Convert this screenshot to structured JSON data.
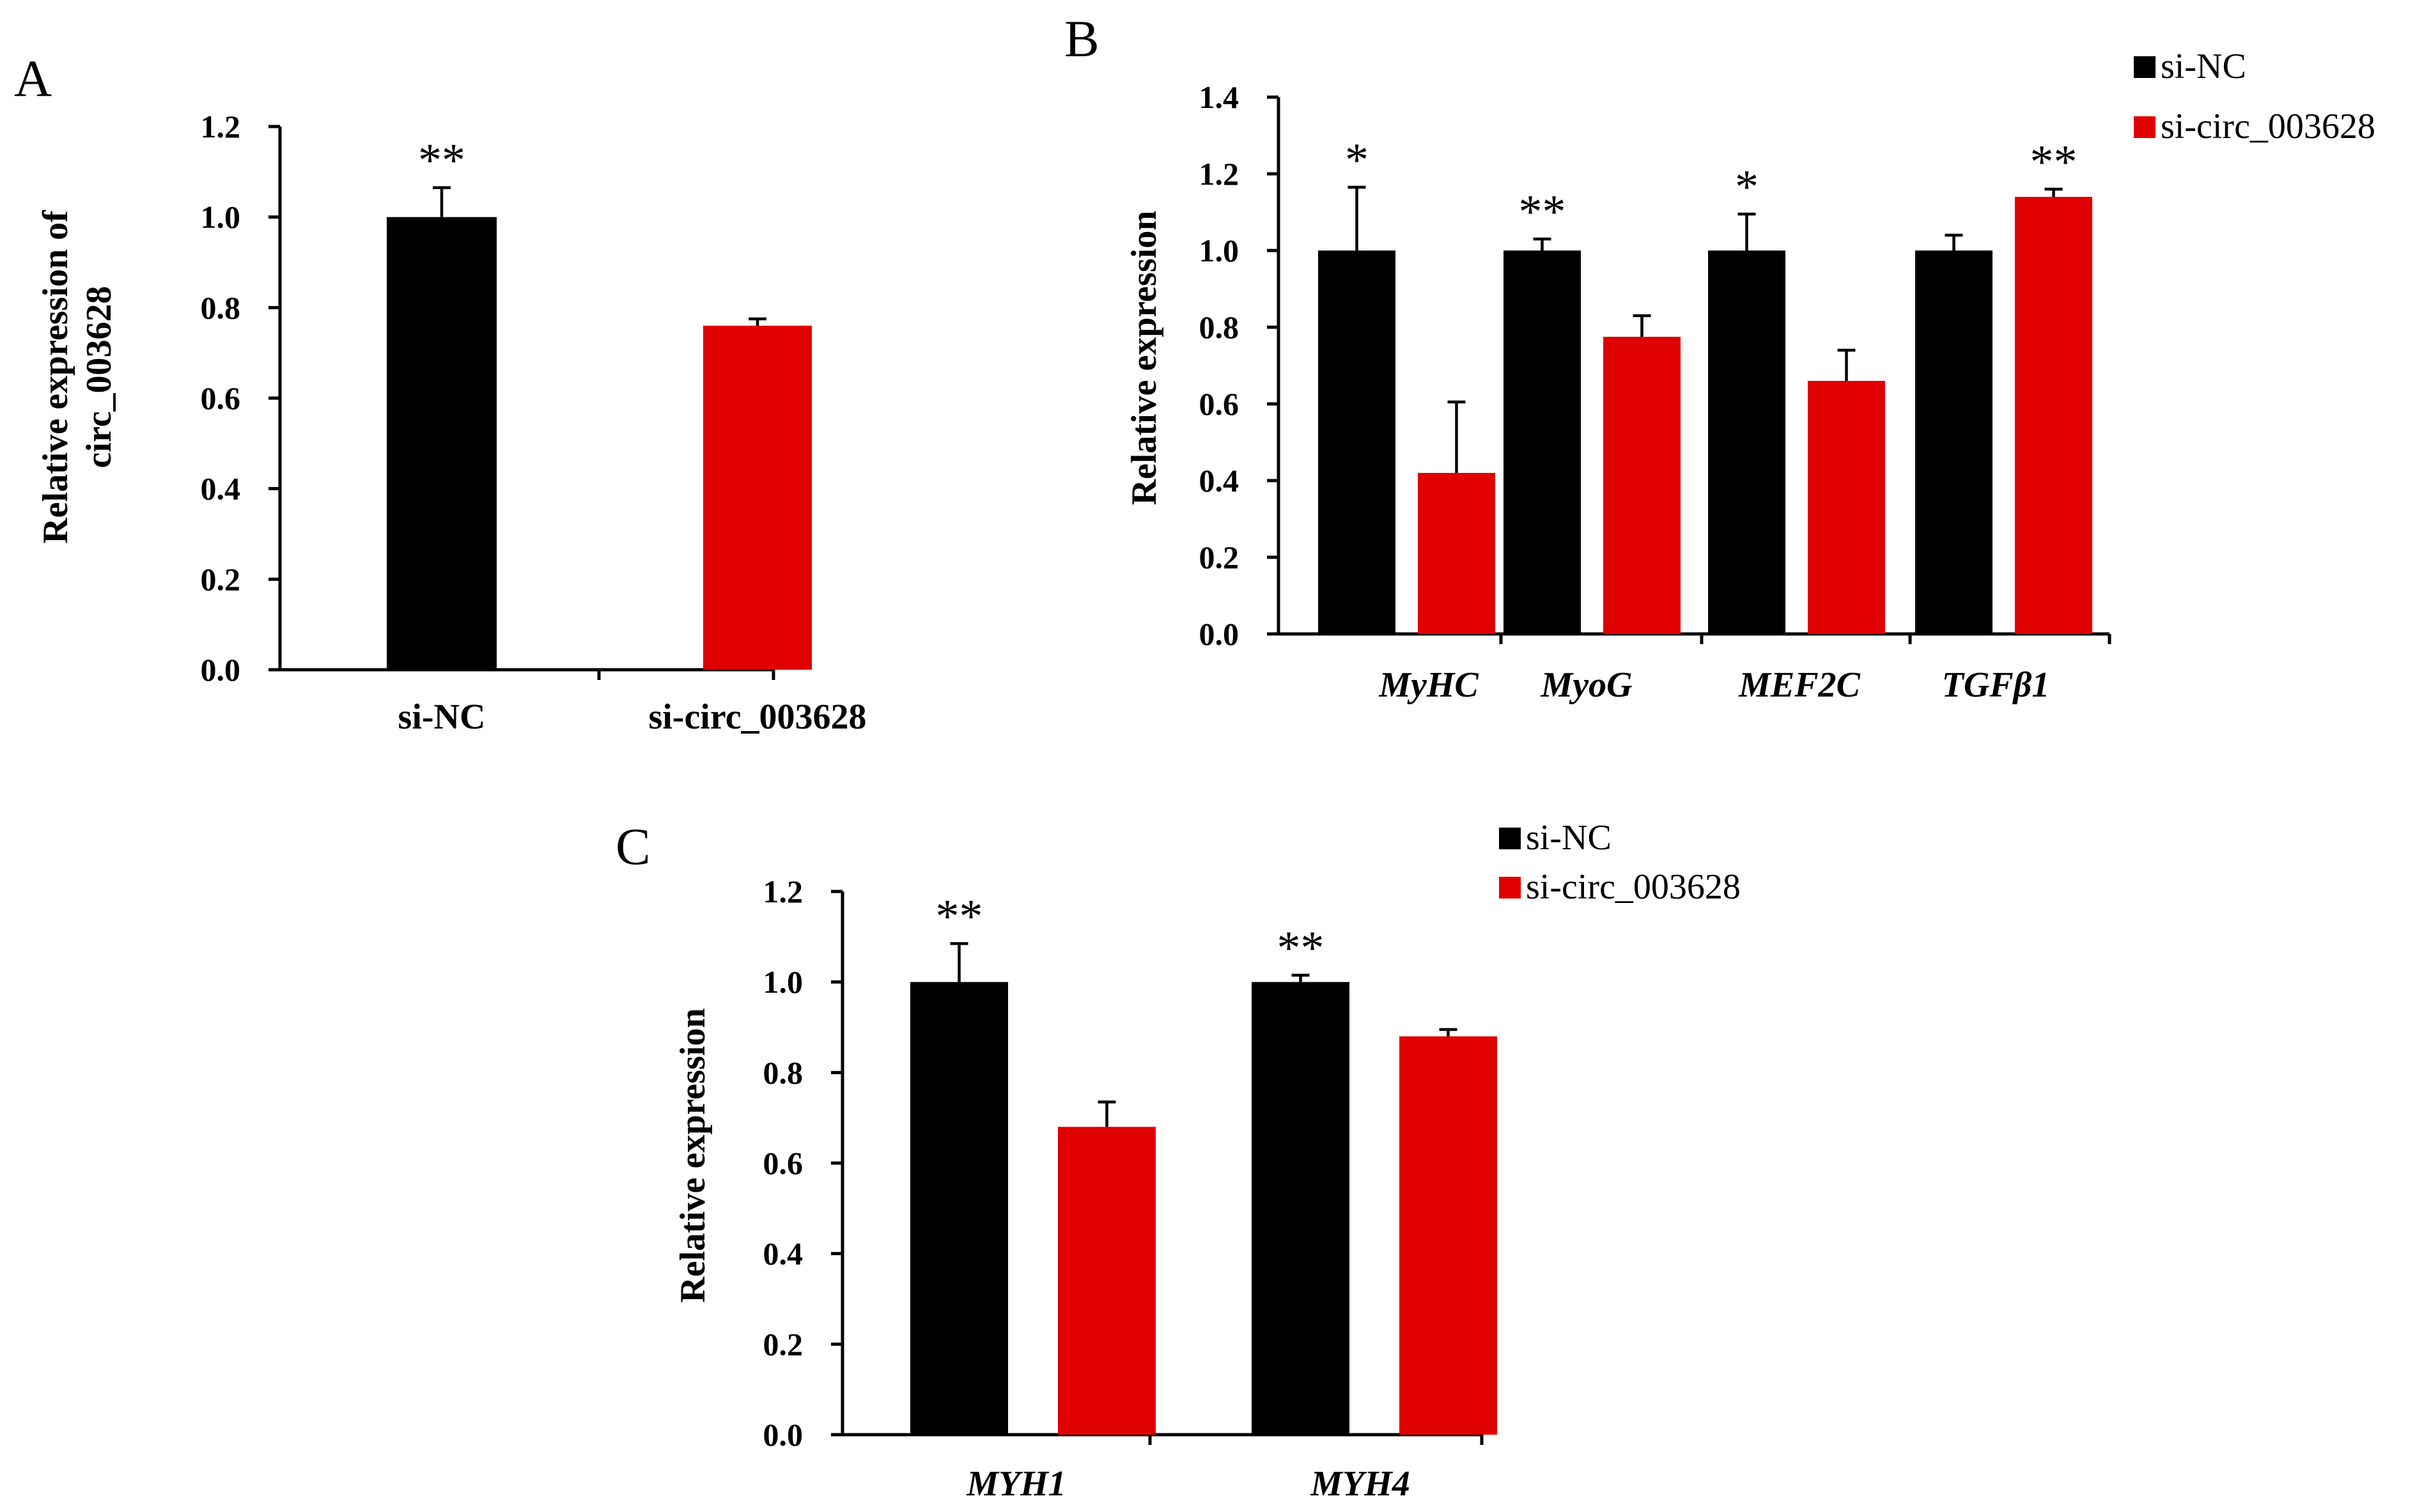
{
  "colors": {
    "si_nc": "#000000",
    "si_circ": "#e00000"
  },
  "chart_data": [
    {
      "panel": "A",
      "type": "bar",
      "title": "",
      "xlabel": "",
      "ylabel": "Relative expression of circ_003628",
      "ylabel_lines": [
        "Relative expression of",
        "circ_003628"
      ],
      "ylim": [
        0,
        1.2
      ],
      "yticks": [
        "0.0",
        "0.2",
        "0.4",
        "0.6",
        "0.8",
        "1.0",
        "1.2"
      ],
      "categories": [
        "si-NC",
        "si-circ_003628"
      ],
      "values": [
        1.0,
        0.76
      ],
      "errors": [
        0.065,
        0.015
      ],
      "colors": [
        "#000000",
        "#e00000"
      ],
      "significance": [
        "**",
        ""
      ],
      "italic_categories": false,
      "legend": false
    },
    {
      "panel": "B",
      "type": "bar",
      "title": "",
      "xlabel": "",
      "ylabel": "Relative expression",
      "ylim": [
        0,
        1.4
      ],
      "yticks": [
        "0.0",
        "0.2",
        "0.4",
        "0.6",
        "0.8",
        "1.0",
        "1.2",
        "1.4"
      ],
      "categories": [
        "MyHC",
        "MyoG",
        "MEF2C",
        "TGFβ1"
      ],
      "series": [
        {
          "name": "si-NC",
          "values": [
            1.0,
            1.0,
            1.0,
            1.0
          ],
          "errors": [
            0.165,
            0.03,
            0.095,
            0.04
          ],
          "color": "#000000"
        },
        {
          "name": "si-circ_003628",
          "values": [
            0.42,
            0.775,
            0.66,
            1.14
          ],
          "errors": [
            0.185,
            0.055,
            0.08,
            0.02
          ],
          "color": "#e00000"
        }
      ],
      "significance": [
        {
          "category": "MyHC",
          "series": "si-NC",
          "label": "*"
        },
        {
          "category": "MyoG",
          "series": "si-NC",
          "label": "**"
        },
        {
          "category": "MEF2C",
          "series": "si-NC",
          "label": "*"
        },
        {
          "category": "TGFβ1",
          "series": "si-circ_003628",
          "label": "**"
        }
      ],
      "italic_categories": true,
      "legend": true,
      "legend_position": "top-right"
    },
    {
      "panel": "C",
      "type": "bar",
      "title": "",
      "xlabel": "",
      "ylabel": "Relative expression",
      "ylim": [
        0,
        1.2
      ],
      "yticks": [
        "0.0",
        "0.2",
        "0.4",
        "0.6",
        "0.8",
        "1.0",
        "1.2"
      ],
      "categories": [
        "MYH1",
        "MYH4"
      ],
      "series": [
        {
          "name": "si-NC",
          "values": [
            1.0,
            1.0
          ],
          "errors": [
            0.085,
            0.015
          ],
          "color": "#000000"
        },
        {
          "name": "si-circ_003628",
          "values": [
            0.68,
            0.88
          ],
          "errors": [
            0.055,
            0.015
          ],
          "color": "#e00000"
        }
      ],
      "significance": [
        {
          "category": "MYH1",
          "series": "si-NC",
          "label": "**"
        },
        {
          "category": "MYH4",
          "series": "si-NC",
          "label": "**"
        }
      ],
      "italic_categories": true,
      "legend": true,
      "legend_position": "top-right"
    }
  ]
}
